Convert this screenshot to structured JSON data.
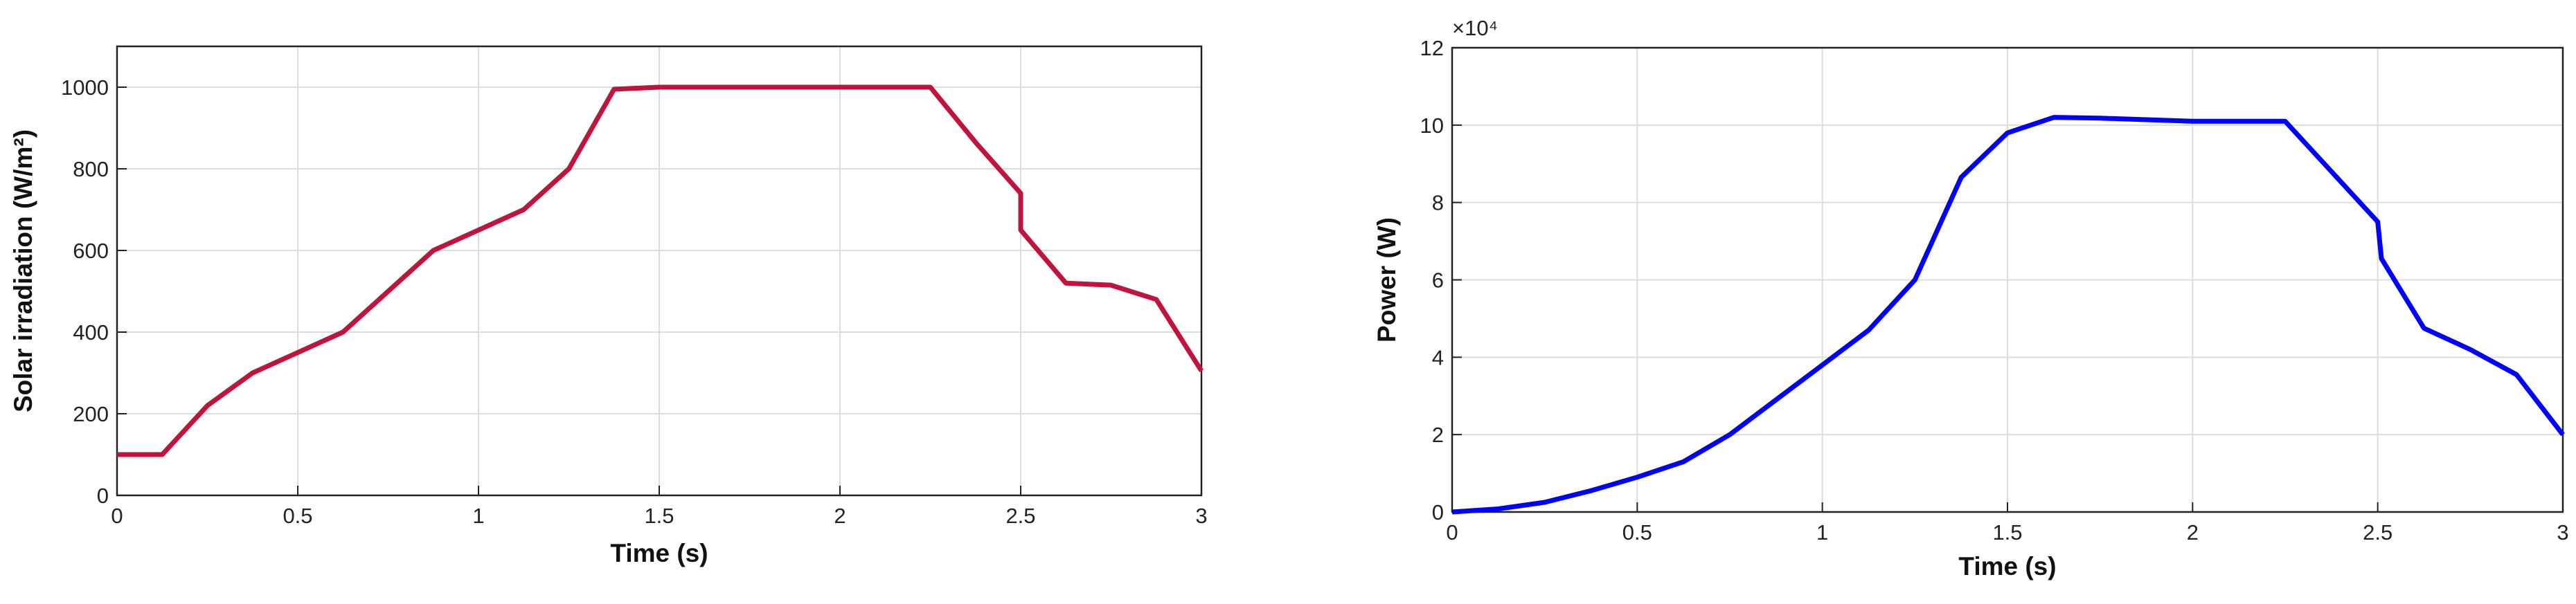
{
  "chart_data": [
    {
      "type": "line",
      "x_label": "Time (s)",
      "y_label": "Solar irradiation (W/m²)",
      "color": "#c0143c",
      "grid": true,
      "x": [
        0,
        0.125,
        0.25,
        0.375,
        0.625,
        0.875,
        1.125,
        1.25,
        1.375,
        1.5,
        2.25,
        2.375,
        2.5,
        2.5,
        2.625,
        2.75,
        2.875,
        3
      ],
      "values": [
        100,
        100,
        220,
        300,
        400,
        600,
        700,
        800,
        995,
        1000,
        1000,
        865,
        740,
        650,
        520,
        515,
        480,
        305
      ],
      "xlim": [
        0,
        3
      ],
      "xticks": [
        0,
        0.5,
        1,
        1.5,
        2,
        2.5,
        3
      ],
      "ylim": [
        0,
        1100
      ],
      "yticks": [
        0,
        200,
        400,
        600,
        800,
        1000
      ]
    },
    {
      "type": "line",
      "x_label": "Time (s)",
      "y_label": "Power (W)",
      "color": "#0000ff",
      "grid": true,
      "y_exponent_label": "×10⁴",
      "x": [
        0,
        0.125,
        0.25,
        0.375,
        0.5,
        0.625,
        0.75,
        0.875,
        1,
        1.125,
        1.25,
        1.375,
        1.5,
        1.625,
        1.75,
        2,
        2.25,
        2.375,
        2.5,
        2.51,
        2.625,
        2.75,
        2.875,
        3
      ],
      "values": [
        0,
        800,
        2500,
        5500,
        9000,
        13000,
        20000,
        29000,
        38000,
        47000,
        60000,
        86500,
        98000,
        102000,
        101800,
        101000,
        101000,
        88000,
        75000,
        65500,
        47500,
        42000,
        35500,
        20000
      ],
      "xlim": [
        0,
        3
      ],
      "xticks": [
        0,
        0.5,
        1,
        1.5,
        2,
        2.5,
        3
      ],
      "ylim": [
        0,
        120000
      ],
      "yticks": [
        {
          "value": 0,
          "label": "0"
        },
        {
          "value": 20000,
          "label": "2"
        },
        {
          "value": 40000,
          "label": "4"
        },
        {
          "value": 60000,
          "label": "6"
        },
        {
          "value": 80000,
          "label": "8"
        },
        {
          "value": 100000,
          "label": "10"
        },
        {
          "value": 120000,
          "label": "12"
        }
      ]
    }
  ]
}
